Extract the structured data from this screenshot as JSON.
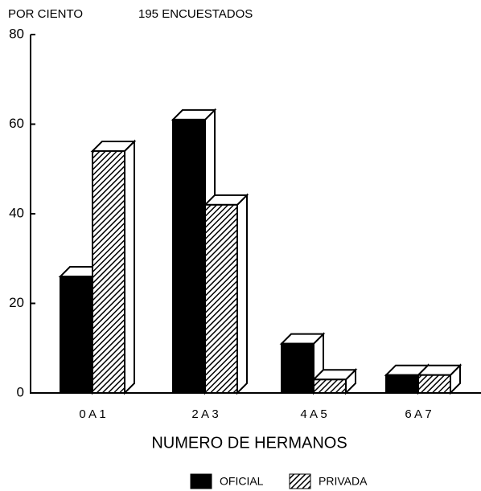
{
  "chart_data": {
    "type": "bar3d",
    "ylabel": "POR CIENTO",
    "subtitle": "195 ENCUESTADOS",
    "xlabel": "NUMERO DE HERMANOS",
    "categories": [
      "0 A 1",
      "2 A 3",
      "4 A 5",
      "6 A 7"
    ],
    "series": [
      {
        "name": "OFICIAL",
        "color": "#000000",
        "pattern": "solid",
        "values": [
          26,
          61,
          11,
          4
        ]
      },
      {
        "name": "PRIVADA",
        "color": "#000000",
        "pattern": "hatch",
        "values": [
          54,
          42,
          3,
          4
        ]
      }
    ],
    "ylim": [
      0,
      80
    ],
    "yticks": [
      0,
      20,
      40,
      60,
      80
    ],
    "legend": "bottom"
  }
}
